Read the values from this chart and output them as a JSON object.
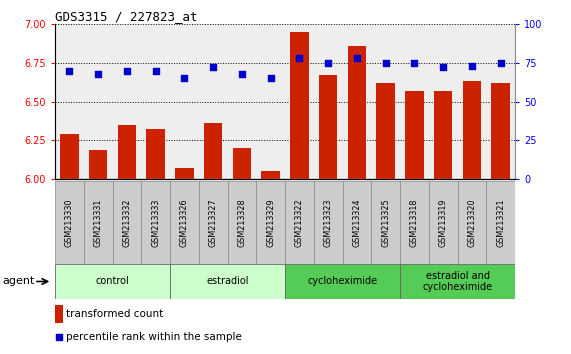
{
  "title": "GDS3315 / 227823_at",
  "samples": [
    "GSM213330",
    "GSM213331",
    "GSM213332",
    "GSM213333",
    "GSM213326",
    "GSM213327",
    "GSM213328",
    "GSM213329",
    "GSM213322",
    "GSM213323",
    "GSM213324",
    "GSM213325",
    "GSM213318",
    "GSM213319",
    "GSM213320",
    "GSM213321"
  ],
  "bar_values": [
    6.29,
    6.19,
    6.35,
    6.32,
    6.07,
    6.36,
    6.2,
    6.05,
    6.95,
    6.67,
    6.86,
    6.62,
    6.57,
    6.57,
    6.63,
    6.62
  ],
  "dot_values": [
    70,
    68,
    70,
    70,
    65,
    72,
    68,
    65,
    78,
    75,
    78,
    75,
    75,
    72,
    73,
    75
  ],
  "bar_color": "#cc2200",
  "dot_color": "#0000cc",
  "ylim_left": [
    6.0,
    7.0
  ],
  "ylim_right": [
    0,
    100
  ],
  "yticks_left": [
    6.0,
    6.25,
    6.5,
    6.75,
    7.0
  ],
  "yticks_right": [
    0,
    25,
    50,
    75,
    100
  ],
  "groups": [
    {
      "label": "control",
      "start": 0,
      "end": 4
    },
    {
      "label": "estradiol",
      "start": 4,
      "end": 8
    },
    {
      "label": "cycloheximide",
      "start": 8,
      "end": 12
    },
    {
      "label": "estradiol and\ncycloheximide",
      "start": 12,
      "end": 16
    }
  ],
  "group_colors_light": [
    "#ccffcc",
    "#ccffcc",
    "#66dd66",
    "#66dd66"
  ],
  "group_colors": [
    "#ccffcc",
    "#ccffcc",
    "#55cc55",
    "#55cc55"
  ],
  "agent_label": "agent",
  "legend_bar_label": "transformed count",
  "legend_dot_label": "percentile rank within the sample",
  "bg_color": "#ffffff",
  "plot_bg_color": "#eeeeee",
  "sample_box_color": "#cccccc",
  "sample_box_edge": "#888888"
}
